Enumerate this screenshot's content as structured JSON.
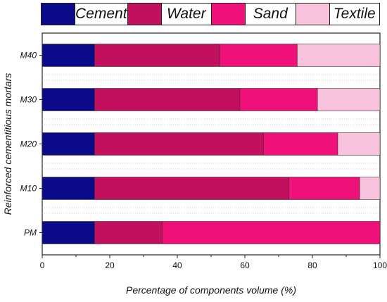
{
  "chart_data": {
    "type": "bar",
    "orientation": "horizontal",
    "stacked": true,
    "categories": [
      "M40",
      "M30",
      "M20",
      "M10",
      "PM"
    ],
    "series": [
      {
        "name": "Cement",
        "color": "#0b0b8a",
        "values": [
          15.5,
          15.5,
          15.5,
          15.5,
          15.5
        ]
      },
      {
        "name": "Water",
        "color": "#c2105e",
        "values": [
          37,
          43,
          50,
          57.5,
          20
        ]
      },
      {
        "name": "Sand",
        "color": "#f0107a",
        "values": [
          23,
          23,
          22,
          21,
          64.5
        ]
      },
      {
        "name": "Textile",
        "color": "#f9c2dc",
        "values": [
          24.5,
          18.5,
          12.5,
          6,
          0
        ]
      }
    ],
    "xlabel": "Percentage of components volume (%)",
    "ylabel": "Reinforced cementitious mortars",
    "xlim": [
      0,
      100
    ],
    "xticks": [
      "0",
      "20",
      "40",
      "60",
      "80",
      "100"
    ],
    "legend_position": "top",
    "grid": "horizontal dotted separators"
  }
}
